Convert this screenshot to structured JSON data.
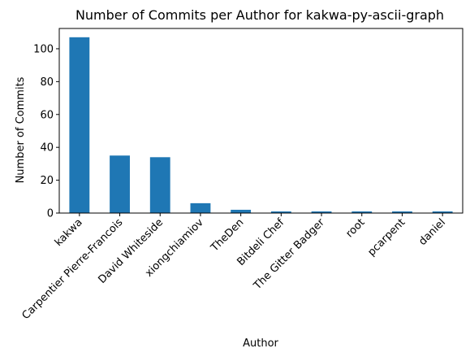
{
  "chart_data": {
    "type": "bar",
    "title": "Number of Commits per Author for kakwa-py-ascii-graph",
    "xlabel": "Author",
    "ylabel": "Number of Commits",
    "categories": [
      "kakwa",
      "Carpentier Pierre-Francois",
      "David Whiteside",
      "xiongchiamiov",
      "TheDen",
      "Bitdeli Chef",
      "The Gitter Badger",
      "root",
      "pcarpent",
      "daniel"
    ],
    "values": [
      107,
      35,
      34,
      6,
      2,
      1,
      1,
      1,
      1,
      1
    ],
    "ylim": [
      0,
      112.35
    ],
    "yticks": [
      0,
      20,
      40,
      60,
      80,
      100
    ],
    "bar_color": "#1f77b4",
    "grid": false,
    "legend": "none"
  }
}
